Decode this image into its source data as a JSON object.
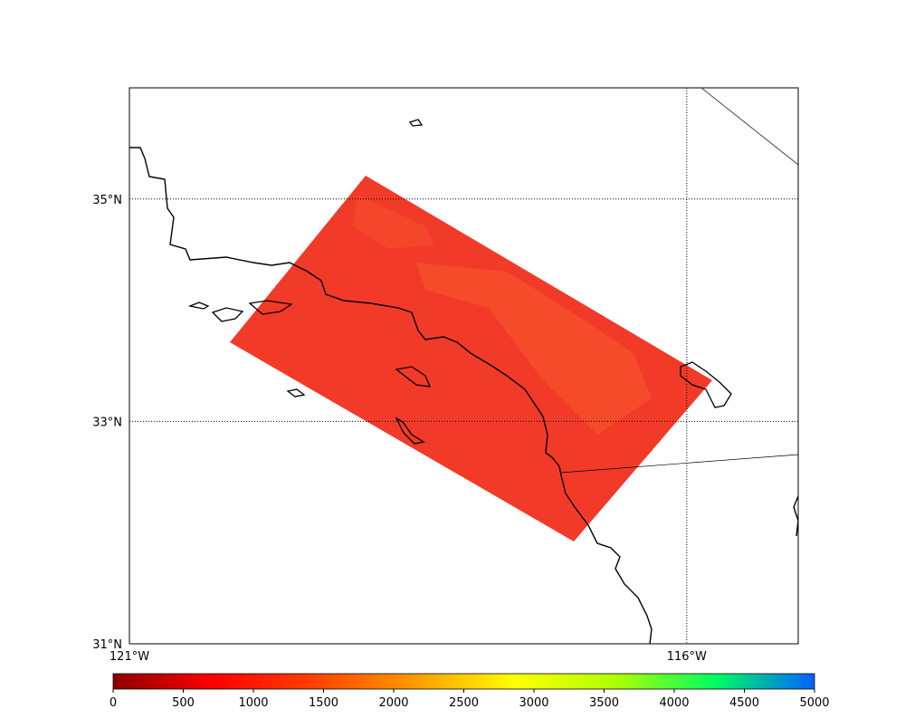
{
  "map": {
    "lonlim": [
      -121,
      -115
    ],
    "latlim": [
      31,
      36
    ],
    "lat_lines": [
      {
        "value": 31,
        "label": "31°N"
      },
      {
        "value": 33,
        "label": "33°N"
      },
      {
        "value": 35,
        "label": "35°N"
      }
    ],
    "lon_lines": [
      {
        "value": -121,
        "label": "121°W"
      },
      {
        "value": -116,
        "label": "116°W"
      }
    ],
    "colorbar": {
      "range": [
        0,
        5000
      ],
      "ticks": [
        0,
        500,
        1000,
        1500,
        2000,
        2500,
        3000,
        3500,
        4000,
        4500,
        5000
      ],
      "colors": [
        "#8b0000",
        "#ff0000",
        "#ff4000",
        "#ff9900",
        "#ffff00",
        "#b0ff00",
        "#00ff60",
        "#0060ff"
      ]
    }
  }
}
